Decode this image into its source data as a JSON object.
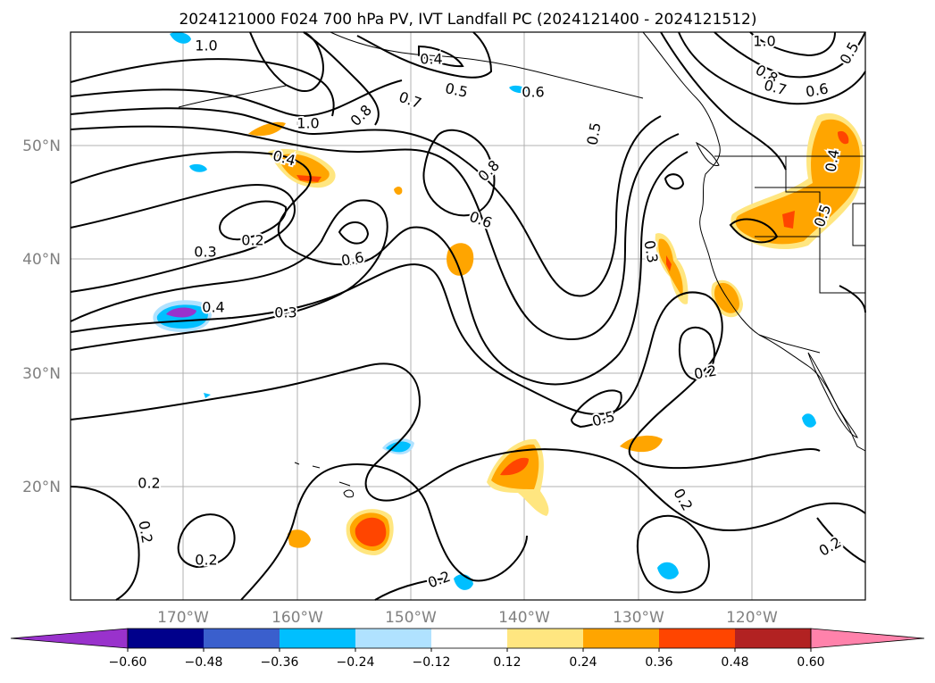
{
  "title": "2024121000 F024 700 hPa PV, IVT Landfall PC (2024121400 - 2024121512)",
  "lat_labels": [
    "50°N",
    "40°N",
    "30°N",
    "20°N"
  ],
  "lon_labels": [
    "170°W",
    "160°W",
    "150°W",
    "140°W",
    "130°W",
    "120°W"
  ],
  "contour_labels": [
    "1.0",
    "0.4",
    "0.5",
    "0.6",
    "0.7",
    "1.0",
    "0.8",
    "0.4",
    "0.5",
    "0.8",
    "0.6",
    "0.2",
    "0.3",
    "0.6",
    "0.4",
    "0.3",
    "1.0",
    "0.8",
    "0.7",
    "0.6",
    "0.5",
    "0.4",
    "0.5",
    "0.3",
    "0.2",
    "0.5",
    "0.2",
    "0.2",
    "0.2",
    "0.2",
    "0.2",
    "0.2"
  ],
  "colorbar": {
    "ticks": [
      "−0.60",
      "−0.48",
      "−0.36",
      "−0.24",
      "−0.12",
      "0.12",
      "0.24",
      "0.36",
      "0.48",
      "0.60"
    ],
    "colors": [
      "#9932cc",
      "#00008b",
      "#3a5fcd",
      "#00bfff",
      "#b0e2ff",
      "#ffffff",
      "#ffe680",
      "#ffa500",
      "#ff4500",
      "#b22222",
      "#ff82ab"
    ]
  }
}
